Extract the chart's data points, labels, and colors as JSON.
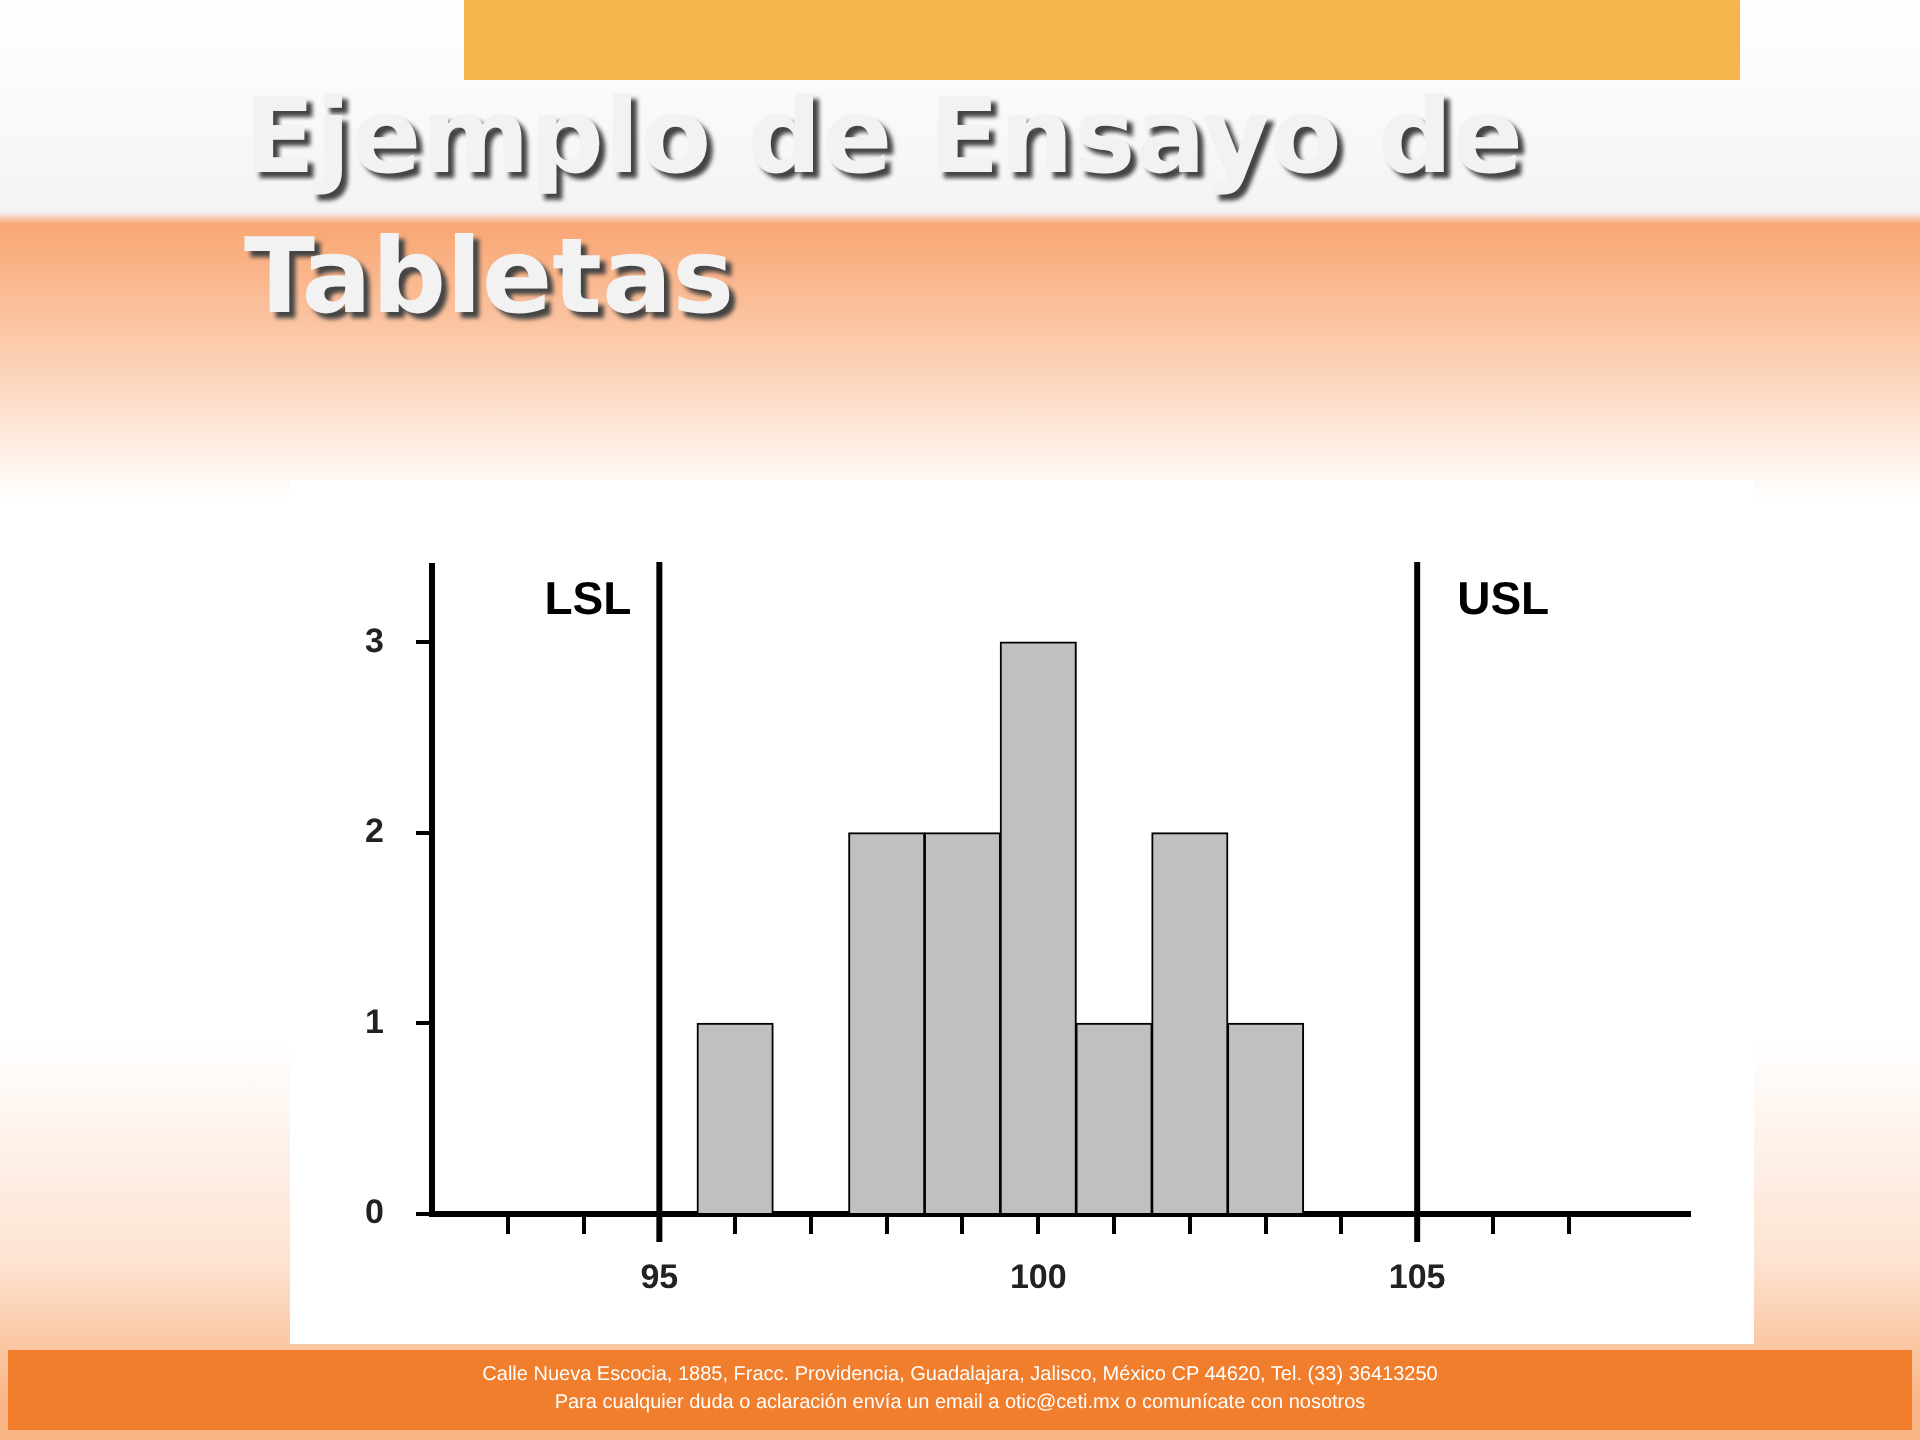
{
  "chart_data": {
    "type": "histogram",
    "title": "Ejemplo de Ensayo de Tabletas",
    "bins": [
      95.5,
      96.5,
      97.5,
      98.5,
      99.5,
      100.5,
      101.5,
      102.5,
      103.5
    ],
    "values": [
      1,
      0,
      2,
      2,
      3,
      1,
      2,
      1
    ],
    "color": "#c0c0c0",
    "xlim": [
      92,
      108.6
    ],
    "xticks": [
      {
        "value": 93,
        "label": null
      },
      {
        "value": 94,
        "label": null
      },
      95,
      {
        "value": 96,
        "label": null
      },
      {
        "value": 97,
        "label": null
      },
      {
        "value": 98,
        "label": null
      },
      {
        "value": 99,
        "label": null
      },
      100,
      {
        "value": 101,
        "label": null
      },
      {
        "value": 102,
        "label": null
      },
      {
        "value": 103,
        "label": null
      },
      {
        "value": 104,
        "label": null
      },
      105,
      {
        "value": 106,
        "label": null
      },
      {
        "value": 107,
        "label": null
      }
    ],
    "ylim": [
      0,
      3.4
    ],
    "yticks": [
      0,
      1,
      2,
      3
    ],
    "ref_lines": [
      {
        "axis": "x",
        "value": 95,
        "label": "LSL",
        "color": "#000000"
      },
      {
        "axis": "x",
        "value": 105,
        "label": "USL",
        "color": "#000000"
      }
    ],
    "annotations": [
      "Calle Nueva Escocia, 1885, Fracc. Providencia, Guadalajara, Jalisco, México CP 44620, Tel. (33) 36413250",
      "Para cualquier duda o aclaración envía un email a otic@ceti.mx o comunícate con nosotros"
    ],
    "grid": false,
    "legend": false
  }
}
